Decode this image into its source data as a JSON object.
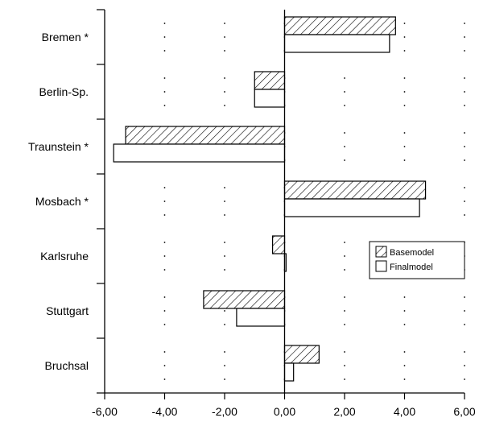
{
  "chart_data": {
    "type": "bar",
    "orientation": "horizontal",
    "title": "",
    "xlabel": "",
    "ylabel": "",
    "categories": [
      "Bremen *",
      "Berlin-Sp.",
      "Traunstein *",
      "Mosbach *",
      "Karlsruhe",
      "Stuttgart",
      "Bruchsal"
    ],
    "series": [
      {
        "name": "Basemodel",
        "values": [
          3.7,
          -1.0,
          -5.3,
          4.7,
          -0.4,
          -2.7,
          1.15
        ],
        "pattern": "hatched"
      },
      {
        "name": "Finalmodel",
        "values": [
          3.5,
          -1.0,
          -5.7,
          4.5,
          0.05,
          -1.6,
          0.3
        ],
        "pattern": "white"
      }
    ],
    "xlim": [
      -6,
      6
    ],
    "xticks": [
      -6,
      -4,
      -2,
      0,
      2,
      4,
      6
    ],
    "xtick_labels": [
      "-6,00",
      "-4,00",
      "-2,00",
      "0,00",
      "2,00",
      "4,00",
      "6,00"
    ],
    "grid": "dotted",
    "legend_position": "right"
  }
}
